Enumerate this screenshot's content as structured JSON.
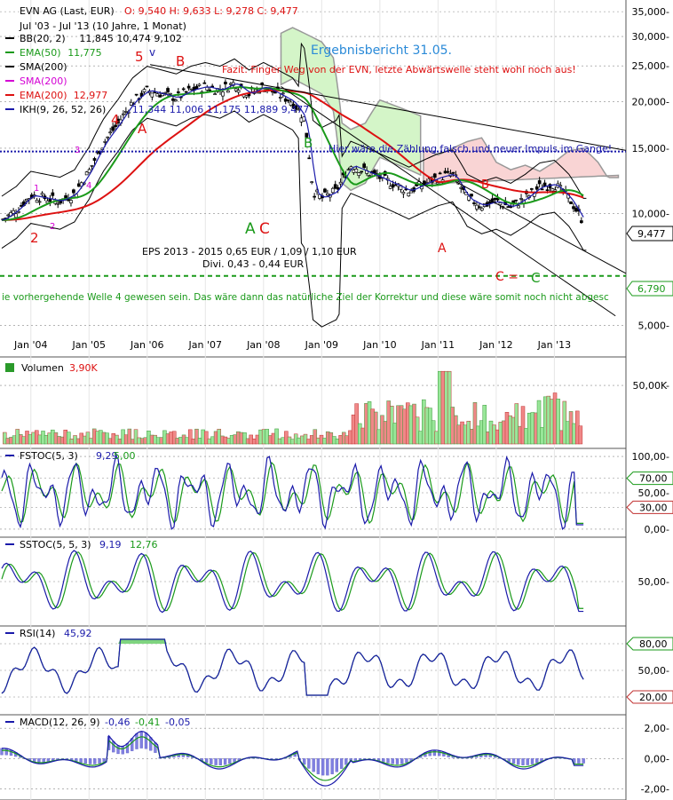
{
  "header": {
    "title": "EVN AG (Last, EUR)",
    "ohlc": "O: 9,540  H: 9,633  L: 9,278  C: 9,477",
    "period": "Jul '03 - Jul '13 (10 Jahre, 1 Monat)"
  },
  "indicators": [
    {
      "label": "BB(20, 2)",
      "values": "11,845  10,474  9,102",
      "color": "#000000",
      "value_color": "#000000"
    },
    {
      "label": "EMA(50)",
      "values": "11,775",
      "color": "#1a9a1a",
      "value_color": "#1a9a1a"
    },
    {
      "label": "SMA(200)",
      "values": "",
      "color": "#000000",
      "value_color": "#000000"
    },
    {
      "label": "SMA(200)",
      "values": "",
      "color": "#d400d4",
      "value_color": "#d400d4"
    },
    {
      "label": "EMA(200)",
      "values": "12,977",
      "color": "#dd1111",
      "value_color": "#dd1111"
    },
    {
      "label": "IKH(9, 26, 52, 26)",
      "values": "11,344  11,006  11,175  11,889  9,477",
      "color": "#1a1aaa",
      "value_color": "#1a1aaa"
    }
  ],
  "annotations": {
    "report_title": "Ergebnisbericht 31.05.",
    "fazit": "Fazit: Finger Weg von der EVN, letzte Abwärtswelle steht wohl noch aus!",
    "impulse_note": "Hier wäre die Zählung falsch und neuer Impuls im Gange!",
    "eps": "EPS 2013 - 2015 0,65 EUR / 1,09 / 1,10 EUR",
    "divi": "Divi. 0,43 - 0,44 EUR",
    "wave_note": "ie vorhergehende Welle 4 gewesen sein. Das wäre dann das natürliche Ziel der Korrektur und diese wäre somit noch nicht abgesc",
    "c_equals": "C =",
    "c_label": "C",
    "last_price": "9,477",
    "target_price": "6,790",
    "wave_labels": [
      {
        "text": "5",
        "color": "#dd1111"
      },
      {
        "text": "v",
        "color": "#1a1aaa"
      },
      {
        "text": "B",
        "color": "#dd1111"
      },
      {
        "text": "4",
        "color": "#dd1111"
      },
      {
        "text": "A",
        "color": "#dd1111"
      },
      {
        "text": "3",
        "color": "#d400d4"
      },
      {
        "text": "1",
        "color": "#d400d4"
      },
      {
        "text": "4",
        "color": "#d400d4"
      },
      {
        "text": "2",
        "color": "#d400d4"
      },
      {
        "text": "2",
        "color": "#dd1111"
      },
      {
        "text": "B",
        "color": "#1a9a1a"
      },
      {
        "text": "A",
        "color": "#1a9a1a"
      },
      {
        "text": "C",
        "color": "#dd1111"
      },
      {
        "text": "B",
        "color": "#dd1111"
      },
      {
        "text": "A",
        "color": "#dd1111"
      }
    ]
  },
  "colors": {
    "blue_line": "#1a1aaa",
    "green_line": "#1a9a1a",
    "red_line": "#dd1111",
    "vol_up": "#99e699",
    "vol_down": "#f08888",
    "cloud_green": "#d4f5c8",
    "cloud_red": "#f9d4d4",
    "rsi_over": "#7fd47f",
    "rsi_under": "#f0a0b0"
  },
  "chart_data": [
    {
      "type": "candlestick",
      "panel": "price",
      "scale": "log",
      "ylim": [
        4200,
        36000
      ],
      "ytick_labels": [
        "35,000-",
        "30,000-",
        "25,000-",
        "20,000-",
        "15,000-",
        "10,000-",
        "5,000-"
      ],
      "yticks": [
        35000,
        30000,
        25000,
        20000,
        15000,
        10000,
        5000
      ],
      "x_labels": [
        "Jan '04",
        "Jan '05",
        "Jan '06",
        "Jan '07",
        "Jan '08",
        "Jan '09",
        "Jan '10",
        "Jan '11",
        "Jan '12",
        "Jan '13"
      ],
      "x_label_years": [
        2004,
        2005,
        2006,
        2007,
        2008,
        2009,
        2010,
        2011,
        2012,
        2013
      ],
      "x_range": [
        2003.5,
        2014.2
      ],
      "close": [
        {
          "x": 2003.5,
          "y": 9.6
        },
        {
          "x": 2003.75,
          "y": 10.2
        },
        {
          "x": 2004.0,
          "y": 11.2
        },
        {
          "x": 2004.25,
          "y": 11.0
        },
        {
          "x": 2004.5,
          "y": 10.8
        },
        {
          "x": 2004.75,
          "y": 11.3
        },
        {
          "x": 2005.0,
          "y": 13.0
        },
        {
          "x": 2005.25,
          "y": 15.5
        },
        {
          "x": 2005.5,
          "y": 17.5
        },
        {
          "x": 2005.75,
          "y": 20.0
        },
        {
          "x": 2006.0,
          "y": 21.5
        },
        {
          "x": 2006.25,
          "y": 21.0
        },
        {
          "x": 2006.5,
          "y": 20.5
        },
        {
          "x": 2006.75,
          "y": 21.5
        },
        {
          "x": 2007.0,
          "y": 22.0
        },
        {
          "x": 2007.25,
          "y": 21.5
        },
        {
          "x": 2007.5,
          "y": 22.5
        },
        {
          "x": 2007.75,
          "y": 21.0
        },
        {
          "x": 2008.0,
          "y": 22.0
        },
        {
          "x": 2008.25,
          "y": 21.0
        },
        {
          "x": 2008.5,
          "y": 20.0
        },
        {
          "x": 2008.7,
          "y": 18.0
        },
        {
          "x": 2008.85,
          "y": 11.5
        },
        {
          "x": 2009.0,
          "y": 11.0
        },
        {
          "x": 2009.25,
          "y": 11.5
        },
        {
          "x": 2009.5,
          "y": 13.5
        },
        {
          "x": 2009.75,
          "y": 13.0
        },
        {
          "x": 2010.0,
          "y": 12.5
        },
        {
          "x": 2010.25,
          "y": 12.0
        },
        {
          "x": 2010.5,
          "y": 11.5
        },
        {
          "x": 2010.75,
          "y": 12.0
        },
        {
          "x": 2011.0,
          "y": 12.5
        },
        {
          "x": 2011.25,
          "y": 12.8
        },
        {
          "x": 2011.5,
          "y": 11.0
        },
        {
          "x": 2011.75,
          "y": 10.5
        },
        {
          "x": 2012.0,
          "y": 10.8
        },
        {
          "x": 2012.25,
          "y": 10.4
        },
        {
          "x": 2012.5,
          "y": 11.0
        },
        {
          "x": 2012.75,
          "y": 11.8
        },
        {
          "x": 2013.0,
          "y": 12.0
        },
        {
          "x": 2013.25,
          "y": 11.0
        },
        {
          "x": 2013.5,
          "y": 9.477
        }
      ]
    },
    {
      "type": "bar",
      "panel": "volume",
      "title": "Volumen",
      "last_value": "3,90K",
      "ytick_labels": [
        "50,00K-"
      ],
      "yticks": [
        50000
      ],
      "ylim": [
        0,
        72000
      ]
    },
    {
      "type": "line",
      "panel": "fstoc",
      "title": "FSTOC(5, 3)",
      "values": [
        "9,29",
        "5,00"
      ],
      "ylim": [
        -5,
        105
      ],
      "ytick_labels": [
        "100,00-",
        "70,00",
        "50,00-",
        "30,00",
        "0,00-"
      ],
      "yticks": [
        100,
        70,
        50,
        30,
        0
      ]
    },
    {
      "type": "line",
      "panel": "sstoc",
      "title": "SSTOC(5, 5, 3)",
      "values": [
        "9,19",
        "12,76"
      ],
      "ylim": [
        -5,
        105
      ],
      "ytick_labels": [
        "50,00-"
      ],
      "yticks": [
        50
      ]
    },
    {
      "type": "line",
      "panel": "rsi",
      "title": "RSI(14)",
      "values": [
        "45,92"
      ],
      "ylim": [
        5,
        95
      ],
      "ytick_labels": [
        "80,00",
        "50,00-",
        "20,00"
      ],
      "yticks": [
        80,
        50,
        20
      ]
    },
    {
      "type": "line",
      "panel": "macd",
      "title": "MACD(12, 26, 9)",
      "values": [
        "-0,46",
        "-0,41",
        "-0,05"
      ],
      "ylim": [
        -2.5,
        2.6
      ],
      "ytick_labels": [
        "2,00-",
        "0,00-",
        "-2,00-"
      ],
      "yticks": [
        2,
        0,
        -2
      ]
    }
  ]
}
